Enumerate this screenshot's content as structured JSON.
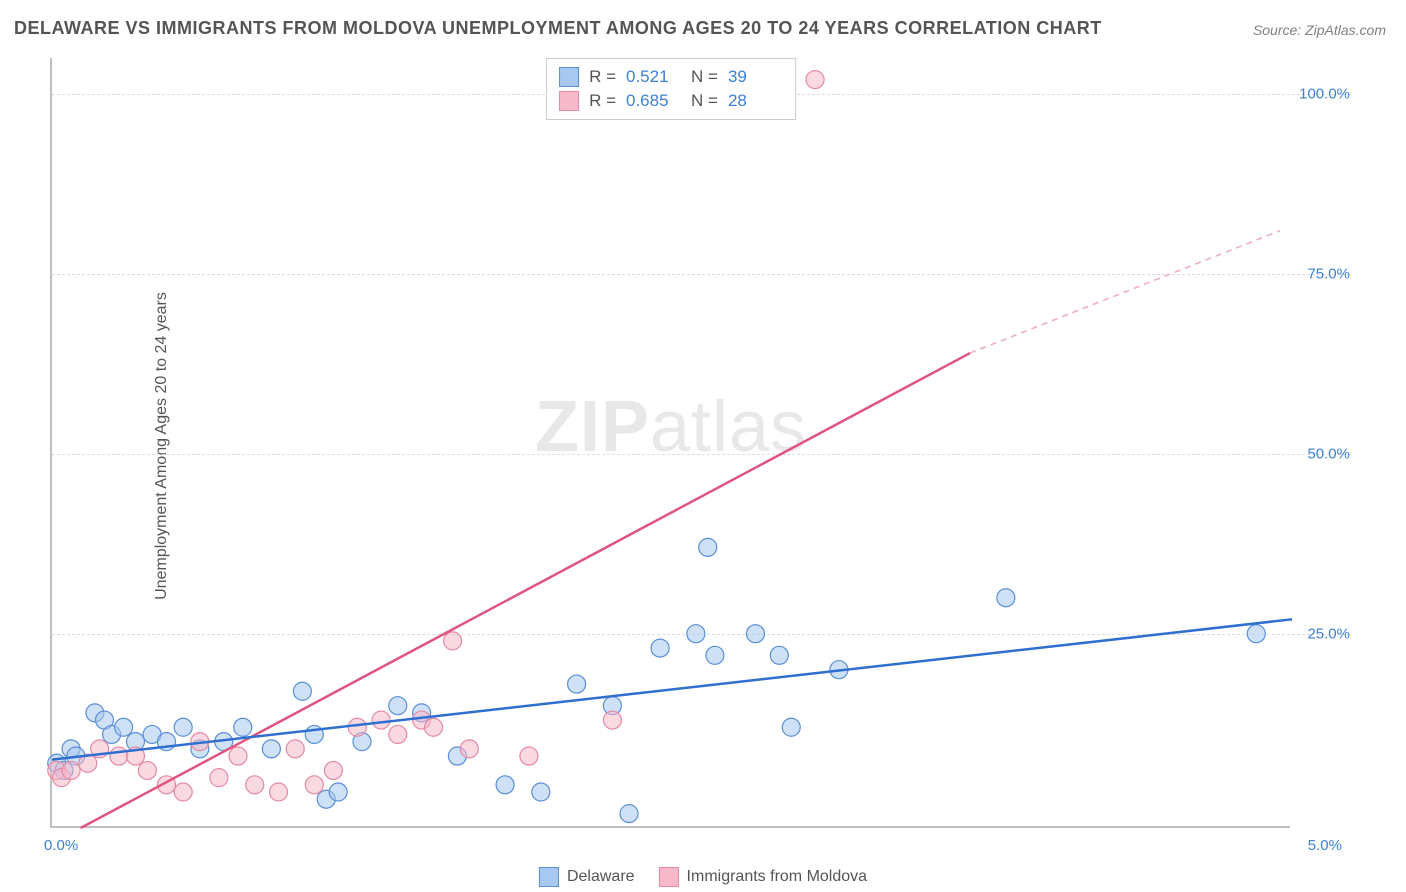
{
  "title": "DELAWARE VS IMMIGRANTS FROM MOLDOVA UNEMPLOYMENT AMONG AGES 20 TO 24 YEARS CORRELATION CHART",
  "source": "Source: ZipAtlas.com",
  "watermark_zip": "ZIP",
  "watermark_atlas": "atlas",
  "y_axis_label": "Unemployment Among Ages 20 to 24 years",
  "chart": {
    "type": "scatter",
    "background_color": "#ffffff",
    "grid_color": "#dddddd",
    "axis_color": "#c0c0c0",
    "text_color": "#555555",
    "value_color": "#3b82d6",
    "x_range": [
      0,
      5.2
    ],
    "y_range": [
      -2,
      105
    ],
    "y_ticks": [
      25.0,
      50.0,
      75.0,
      100.0
    ],
    "y_tick_labels": [
      "25.0%",
      "50.0%",
      "75.0%",
      "100.0%"
    ],
    "x_tick_left": "0.0%",
    "x_tick_right": "5.0%",
    "point_radius": 9,
    "point_stroke_width": 1.2,
    "series": [
      {
        "name": "Delaware",
        "fill": "#a8c8ef",
        "stroke": "#5a8fd6",
        "fill_opacity": 0.55,
        "R": "0.521",
        "N": "39",
        "trend": {
          "x1": 0.0,
          "y1": 7.5,
          "x2": 5.2,
          "y2": 27.0,
          "color": "#2f6fd0",
          "width": 2.5
        },
        "points": [
          [
            0.02,
            7
          ],
          [
            0.05,
            6
          ],
          [
            0.08,
            9
          ],
          [
            0.1,
            8
          ],
          [
            0.18,
            14
          ],
          [
            0.22,
            13
          ],
          [
            0.25,
            11
          ],
          [
            0.3,
            12
          ],
          [
            0.35,
            10
          ],
          [
            0.42,
            11
          ],
          [
            0.48,
            10
          ],
          [
            0.55,
            12
          ],
          [
            0.62,
            9
          ],
          [
            0.72,
            10
          ],
          [
            0.8,
            12
          ],
          [
            0.92,
            9
          ],
          [
            1.05,
            17
          ],
          [
            1.1,
            11
          ],
          [
            1.15,
            2
          ],
          [
            1.2,
            3
          ],
          [
            1.3,
            10
          ],
          [
            1.45,
            15
          ],
          [
            1.55,
            14
          ],
          [
            1.7,
            8
          ],
          [
            1.9,
            4
          ],
          [
            2.05,
            3
          ],
          [
            2.2,
            18
          ],
          [
            2.35,
            15
          ],
          [
            2.42,
            0
          ],
          [
            2.55,
            23
          ],
          [
            2.7,
            25
          ],
          [
            2.78,
            22
          ],
          [
            2.95,
            25
          ],
          [
            3.05,
            22
          ],
          [
            3.1,
            12
          ],
          [
            3.3,
            20
          ],
          [
            2.75,
            37
          ],
          [
            4.0,
            30
          ],
          [
            5.05,
            25
          ]
        ]
      },
      {
        "name": "Immigrants from Moldova",
        "fill": "#f6b9c9",
        "stroke": "#e48aa5",
        "fill_opacity": 0.55,
        "R": "0.685",
        "N": "28",
        "trend_solid": {
          "x1": 0.12,
          "y1": -2.0,
          "x2": 3.85,
          "y2": 64.0,
          "color": "#e0557f",
          "width": 2.5
        },
        "trend_dashed": {
          "x1": 3.85,
          "y1": 64.0,
          "x2": 5.15,
          "y2": 81.0,
          "color": "#f0a8bd",
          "width": 1.5
        },
        "points": [
          [
            0.02,
            6
          ],
          [
            0.04,
            5
          ],
          [
            0.08,
            6
          ],
          [
            0.15,
            7
          ],
          [
            0.2,
            9
          ],
          [
            0.28,
            8
          ],
          [
            0.35,
            8
          ],
          [
            0.4,
            6
          ],
          [
            0.48,
            4
          ],
          [
            0.55,
            3
          ],
          [
            0.62,
            10
          ],
          [
            0.7,
            5
          ],
          [
            0.78,
            8
          ],
          [
            0.85,
            4
          ],
          [
            0.95,
            3
          ],
          [
            1.02,
            9
          ],
          [
            1.1,
            4
          ],
          [
            1.18,
            6
          ],
          [
            1.28,
            12
          ],
          [
            1.38,
            13
          ],
          [
            1.45,
            11
          ],
          [
            1.55,
            13
          ],
          [
            1.6,
            12
          ],
          [
            1.68,
            24
          ],
          [
            1.75,
            9
          ],
          [
            2.0,
            8
          ],
          [
            2.35,
            13
          ],
          [
            3.2,
            102
          ]
        ]
      }
    ]
  },
  "stats_legend": {
    "R_label": "R  =",
    "N_label": "N  ="
  },
  "bottom_legend": {
    "series1": "Delaware",
    "series2": "Immigrants from Moldova"
  }
}
